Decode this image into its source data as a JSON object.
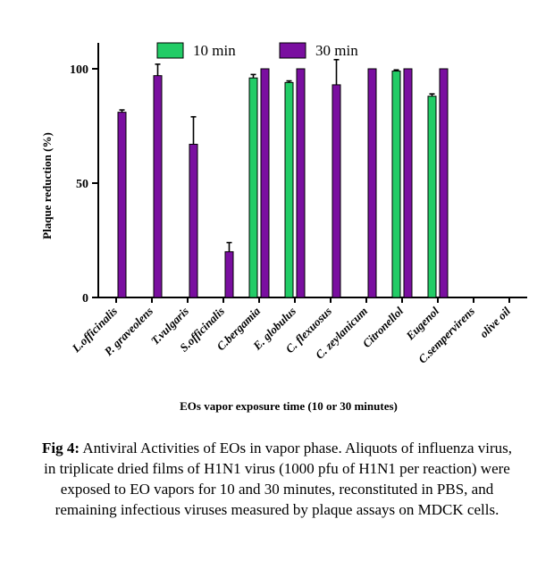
{
  "chart_data": {
    "type": "bar",
    "title": "",
    "xlabel": "EOs vapor exposure time (10 or 30 minutes)",
    "ylabel": "Plaque reduction (%)",
    "ylim": [
      0,
      110
    ],
    "yticks": [
      "0",
      "50",
      "100"
    ],
    "ytick_values": [
      0,
      50,
      100
    ],
    "legend_position": "top",
    "grid": false,
    "categories": [
      "L.officinalis",
      "P. graveolens",
      "T.vulgaris",
      "S.officinalis",
      "C.bergamia",
      "E. globulus",
      "C. flexuosus",
      "C. zeylanicum",
      "Citronellol",
      "Eugenol",
      "C.sempervirens",
      "olive oil"
    ],
    "series": [
      {
        "name": "10 min",
        "color": "#22cc66",
        "values": [
          null,
          null,
          null,
          null,
          96,
          94,
          null,
          null,
          99,
          88,
          null,
          null
        ],
        "errors": [
          null,
          null,
          null,
          null,
          1.5,
          0.7,
          null,
          null,
          0.5,
          1.0,
          null,
          null
        ]
      },
      {
        "name": "30 min",
        "color": "#7a0fa0",
        "values": [
          81,
          97,
          67,
          20,
          100,
          100,
          93,
          100,
          100,
          100,
          null,
          null
        ],
        "errors": [
          1,
          5,
          12,
          4,
          0,
          0,
          11,
          0,
          0,
          0,
          null,
          null
        ]
      }
    ]
  },
  "caption": {
    "label": "Fig 4:",
    "text": " Antiviral Activities of EOs in vapor phase.  Aliquots of influenza virus, in triplicate dried films of H1N1 virus (1000 pfu of H1N1 per reaction) were exposed to EO vapors for 10 and 30 minutes, reconstituted in PBS, and remaining infectious viruses measured by plaque assays on MDCK cells."
  }
}
